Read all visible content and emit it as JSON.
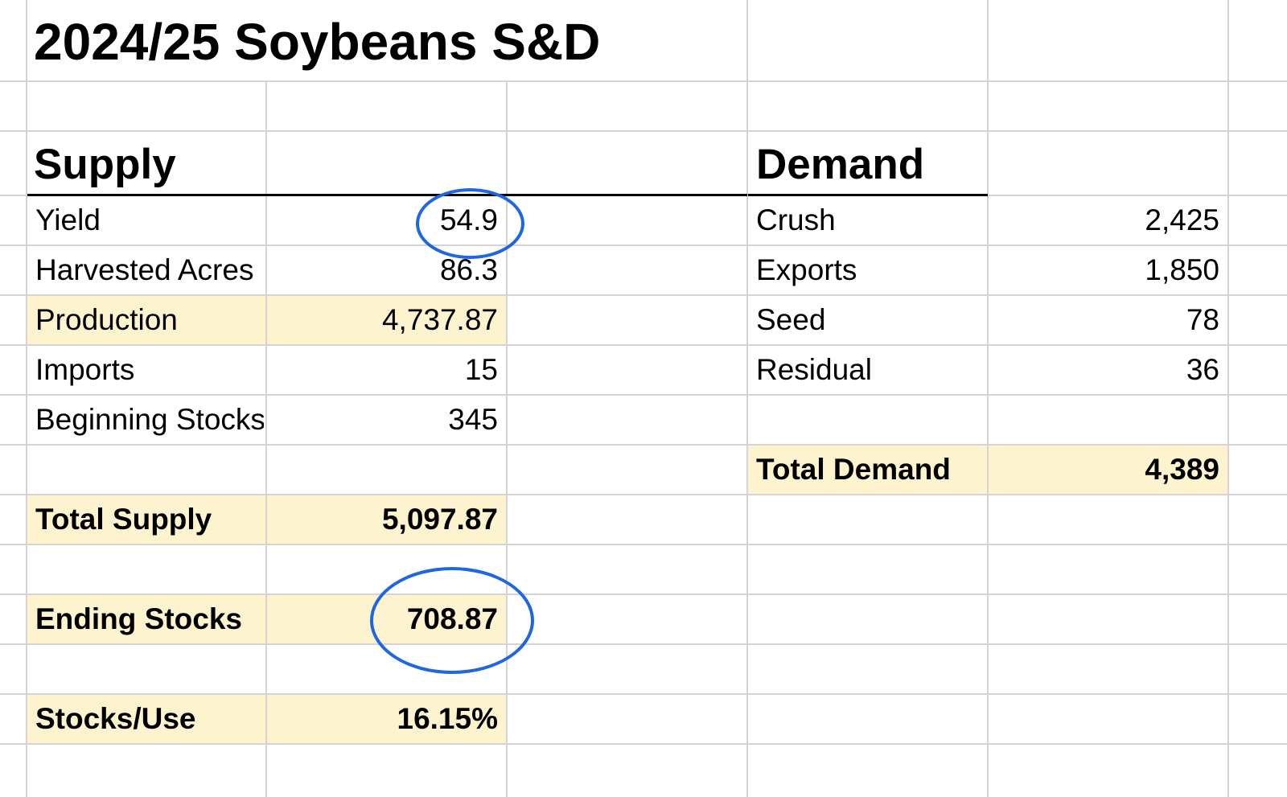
{
  "title": "2024/25 Soybeans S&D",
  "supply": {
    "header": "Supply",
    "rows": [
      {
        "label": "Yield",
        "value": "54.9"
      },
      {
        "label": "Harvested Acres",
        "value": "86.3"
      },
      {
        "label": "Production",
        "value": "4,737.87"
      },
      {
        "label": "Imports",
        "value": "15"
      },
      {
        "label": "Beginning Stocks",
        "value": "345"
      }
    ],
    "total": {
      "label": "Total Supply",
      "value": "5,097.87"
    },
    "ending": {
      "label": "Ending Stocks",
      "value": "708.87"
    },
    "ratio": {
      "label": "Stocks/Use",
      "value": "16.15%"
    }
  },
  "demand": {
    "header": "Demand",
    "rows": [
      {
        "label": "Crush",
        "value": "2,425"
      },
      {
        "label": "Exports",
        "value": "1,850"
      },
      {
        "label": "Seed",
        "value": "78"
      },
      {
        "label": "Residual",
        "value": "36"
      }
    ],
    "total": {
      "label": "Total Demand",
      "value": "4,389"
    }
  },
  "colors": {
    "highlight_fill": "#fdf3cf",
    "annotation_circle": "#1f66e0",
    "gridline": "#d4d4d4"
  }
}
